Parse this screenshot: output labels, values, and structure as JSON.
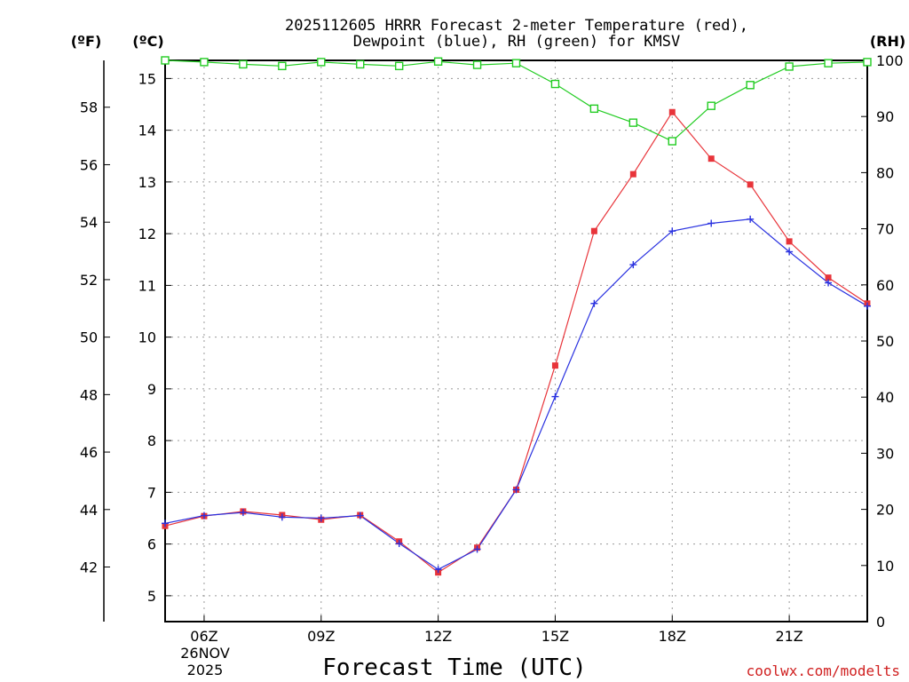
{
  "chart_data": {
    "type": "line",
    "title_line1": "2025112605 HRRR Forecast 2-meter Temperature (red),",
    "title_line2": "Dewpoint (blue), RH (green) for KMSV",
    "xlabel": "Forecast Time (UTC)",
    "credit": "coolwx.com/modelts",
    "units": {
      "fahrenheit": "(ºF)",
      "celsius": "(ºC)",
      "rh": "(RH)"
    },
    "date_line1": "26NOV",
    "date_line2": "2025",
    "x_hours": [
      5,
      6,
      7,
      8,
      9,
      10,
      11,
      12,
      13,
      14,
      15,
      16,
      17,
      18,
      19,
      20,
      21,
      22,
      23
    ],
    "xlim": [
      5,
      23
    ],
    "x_ticks": [
      {
        "hour": 6,
        "label": "06Z"
      },
      {
        "hour": 9,
        "label": "09Z"
      },
      {
        "hour": 12,
        "label": "12Z"
      },
      {
        "hour": 15,
        "label": "15Z"
      },
      {
        "hour": 18,
        "label": "18Z"
      },
      {
        "hour": 21,
        "label": "21Z"
      }
    ],
    "ylim_c": [
      4.5,
      15.35
    ],
    "y_ticks_c": [
      5,
      6,
      7,
      8,
      9,
      10,
      11,
      12,
      13,
      14,
      15
    ],
    "y_ticks_f": [
      42,
      44,
      46,
      48,
      50,
      52,
      54,
      56,
      58
    ],
    "ylim_rh": [
      0,
      100
    ],
    "y_ticks_rh": [
      0,
      10,
      20,
      30,
      40,
      50,
      60,
      70,
      80,
      90,
      100
    ],
    "colors": {
      "temperature": "#e8343a",
      "dewpoint": "#2a32e0",
      "rh": "#22cc22"
    },
    "series": [
      {
        "name": "Temperature (°C)",
        "values": [
          6.35,
          6.54,
          6.63,
          6.56,
          6.47,
          6.56,
          6.05,
          5.45,
          5.93,
          7.05,
          9.45,
          12.05,
          13.15,
          14.35,
          13.45,
          12.95,
          11.85,
          11.15,
          10.65
        ]
      },
      {
        "name": "Dewpoint (°C)",
        "values": [
          6.4,
          6.55,
          6.61,
          6.52,
          6.5,
          6.55,
          6.01,
          5.51,
          5.9,
          7.05,
          8.85,
          10.65,
          11.4,
          12.05,
          12.2,
          12.28,
          11.65,
          11.05,
          10.6
        ]
      },
      {
        "name": "RH (%)",
        "values": [
          100,
          99.7,
          99.3,
          99.0,
          99.7,
          99.3,
          99.0,
          99.8,
          99.2,
          99.5,
          95.8,
          91.4,
          88.9,
          85.6,
          91.9,
          95.6,
          98.9,
          99.5,
          99.7
        ]
      }
    ]
  }
}
